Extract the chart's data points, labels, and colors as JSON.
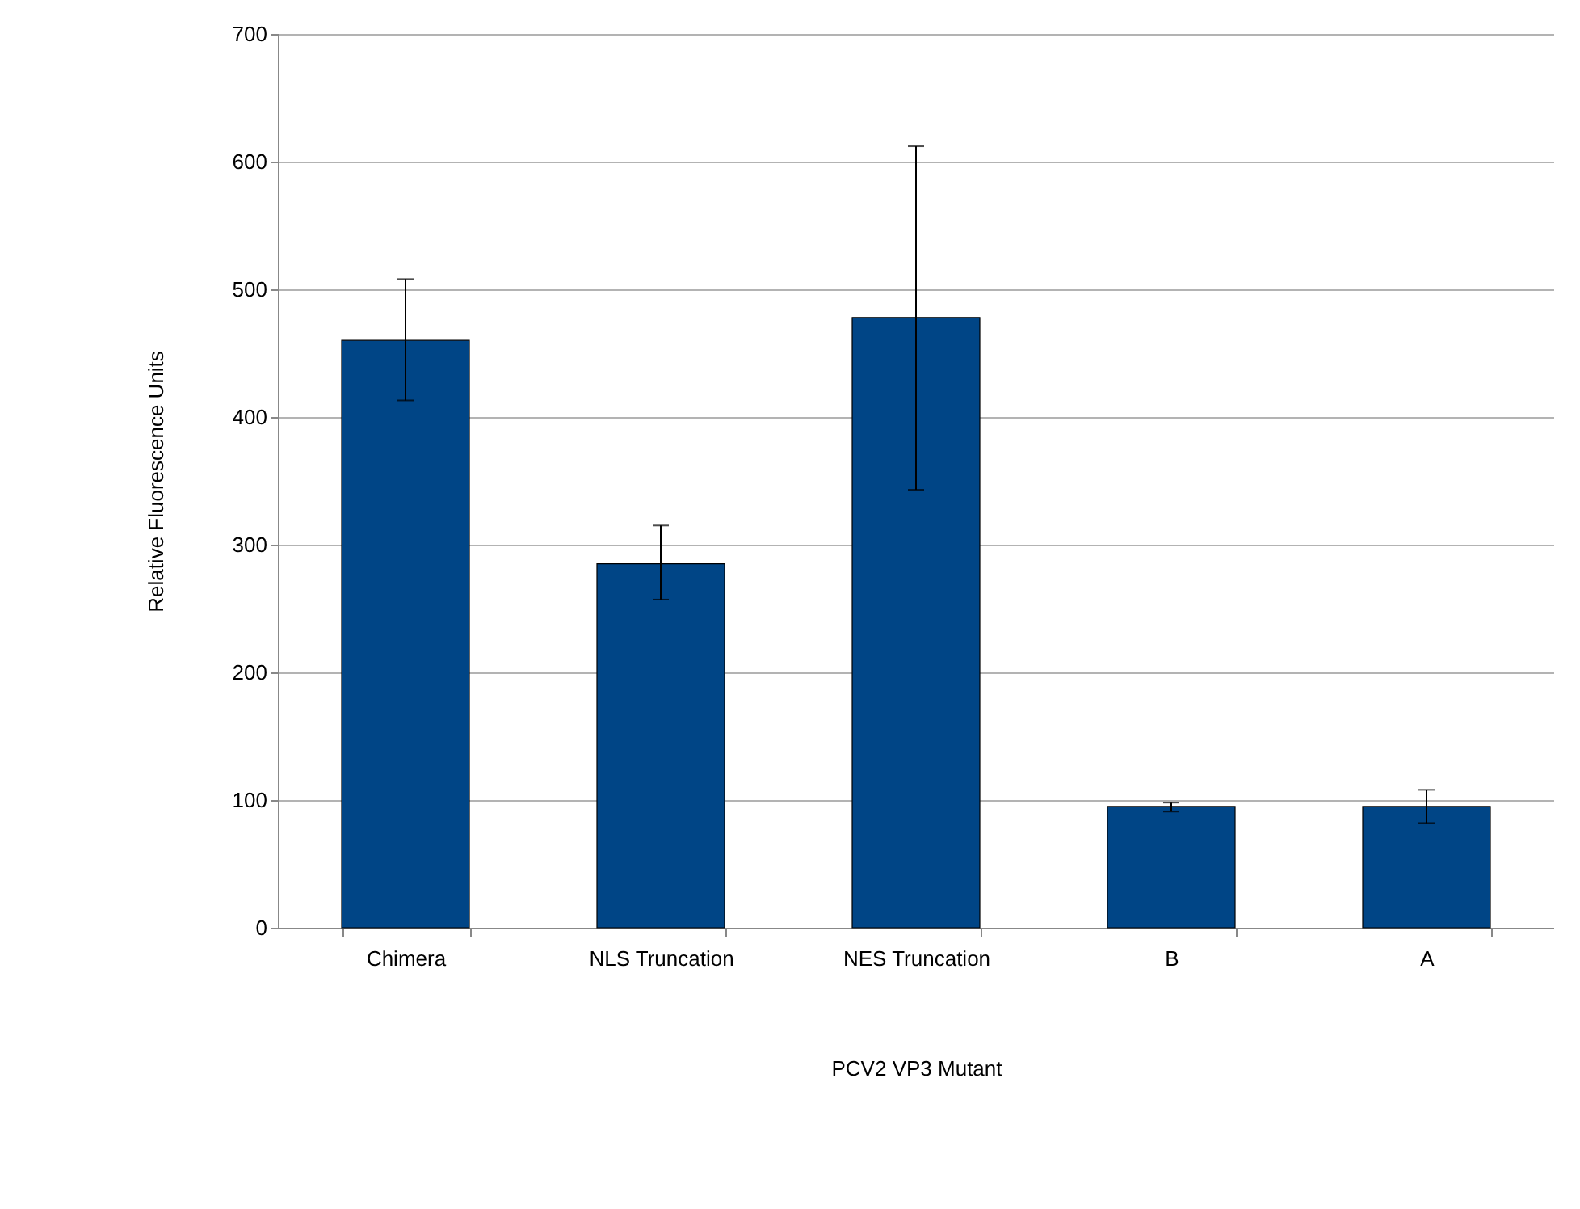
{
  "chart_data": {
    "type": "bar",
    "xlabel": "PCV2 VP3 Mutant",
    "ylabel": "Relative Fluorescence Units",
    "categories": [
      "Chimera",
      "NLS Truncation",
      "NES Truncation",
      "B",
      "A"
    ],
    "values": [
      460,
      285,
      478,
      95,
      95
    ],
    "errors": [
      [
        413,
        508
      ],
      [
        257,
        315
      ],
      [
        343,
        612
      ],
      [
        91,
        98
      ],
      [
        82,
        108
      ]
    ],
    "color": "#004586",
    "ylim": [
      0,
      700
    ],
    "yticks": [
      0,
      100,
      200,
      300,
      400,
      500,
      600,
      700
    ],
    "grid": "y"
  }
}
